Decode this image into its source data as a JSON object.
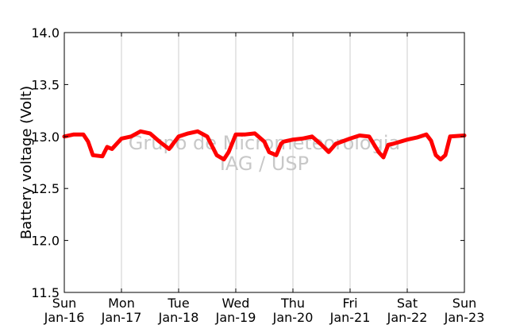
{
  "chart_data": {
    "type": "line",
    "title": "",
    "xlabel": "",
    "ylabel": "Battery voltage (Volt)",
    "ylim": [
      11.5,
      14.0
    ],
    "xlim": [
      "Jan-16 00:00",
      "Jan-23 00:00"
    ],
    "x_ticks": [
      {
        "day": "Sun",
        "date": "Jan-16"
      },
      {
        "day": "Mon",
        "date": "Jan-17"
      },
      {
        "day": "Tue",
        "date": "Jan-18"
      },
      {
        "day": "Wed",
        "date": "Jan-19"
      },
      {
        "day": "Thu",
        "date": "Jan-20"
      },
      {
        "day": "Fri",
        "date": "Jan-21"
      },
      {
        "day": "Sat",
        "date": "Jan-22"
      },
      {
        "day": "Sun",
        "date": "Jan-23"
      }
    ],
    "y_ticks": [
      "11.5",
      "12.0",
      "12.5",
      "13.0",
      "13.5",
      "14.0"
    ],
    "grid": "vertical",
    "watermark": [
      "Grupo de Micrometeorologia",
      "IAG / USP"
    ],
    "series": [
      {
        "color": "#ff0000",
        "x": [
          "Jan-16 00:00",
          "Jan-16 04:00",
          "Jan-16 08:00",
          "Jan-16 10:00",
          "Jan-16 12:00",
          "Jan-16 16:00",
          "Jan-16 18:00",
          "Jan-16 20:00",
          "Jan-17 00:00",
          "Jan-17 04:00",
          "Jan-17 08:00",
          "Jan-17 12:00",
          "Jan-17 16:00",
          "Jan-17 20:00",
          "Jan-18 00:00",
          "Jan-18 04:00",
          "Jan-18 08:00",
          "Jan-18 12:00",
          "Jan-18 16:00",
          "Jan-18 19:00",
          "Jan-18 21:00",
          "Jan-19 00:00",
          "Jan-19 04:00",
          "Jan-19 08:00",
          "Jan-19 12:00",
          "Jan-19 14:00",
          "Jan-19 17:00",
          "Jan-19 19:00",
          "Jan-19 20:00",
          "Jan-20 00:00",
          "Jan-20 04:00",
          "Jan-20 08:00",
          "Jan-20 12:00",
          "Jan-20 15:00",
          "Jan-20 18:00",
          "Jan-21 00:00",
          "Jan-21 04:00",
          "Jan-21 08:00",
          "Jan-21 12:00",
          "Jan-21 14:00",
          "Jan-21 16:00",
          "Jan-21 18:00",
          "Jan-22 00:00",
          "Jan-22 04:00",
          "Jan-22 08:00",
          "Jan-22 10:00",
          "Jan-22 12:00",
          "Jan-22 14:00",
          "Jan-22 16:00",
          "Jan-22 18:00",
          "Jan-23 00:00"
        ],
        "y": [
          13.0,
          13.02,
          13.02,
          12.95,
          12.82,
          12.81,
          12.9,
          12.88,
          12.98,
          13.0,
          13.05,
          13.03,
          12.95,
          12.88,
          13.0,
          13.03,
          13.05,
          13.0,
          12.82,
          12.78,
          12.85,
          13.02,
          13.02,
          13.03,
          12.95,
          12.85,
          12.82,
          12.93,
          12.95,
          12.97,
          12.98,
          13.0,
          12.92,
          12.85,
          12.93,
          12.98,
          13.01,
          13.0,
          12.85,
          12.8,
          12.92,
          12.93,
          12.97,
          12.99,
          13.02,
          12.96,
          12.82,
          12.78,
          12.82,
          13.0,
          13.01
        ]
      }
    ]
  }
}
